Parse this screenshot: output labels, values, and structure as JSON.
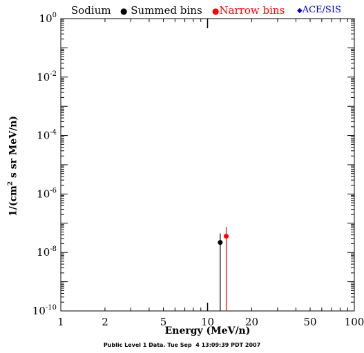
{
  "legend": {
    "species": "Sodium",
    "summed_label": "Summed bins",
    "narrow_label": "Narrow bins",
    "source_label": "ACE/SIS",
    "colors": {
      "summed": "#000000",
      "narrow": "#ff0000",
      "source": "#0000cc"
    }
  },
  "footer": "Public Level 1 Data. Tue Sep  4 13:09:39 PDT 2007",
  "chart_data": {
    "type": "scatter",
    "xlabel": "Energy (MeV/n)",
    "ylabel_prefix": "1/(cm",
    "ylabel_sup": "2",
    "ylabel_suffix": " s sr MeV/n)",
    "x_scale": "log",
    "y_scale": "log",
    "xlim": [
      1,
      100
    ],
    "ylim": [
      1e-10,
      1
    ],
    "x_ticks": [
      1,
      2,
      5,
      10,
      20,
      50,
      100
    ],
    "x_tick_labels": [
      "1",
      "2",
      "5",
      "10",
      "20",
      "50",
      "100"
    ],
    "y_ticks": [
      1,
      0.01,
      0.0001,
      1e-06,
      1e-08,
      1e-10
    ],
    "y_tick_labels": [
      {
        "base": "10",
        "exp": "0"
      },
      {
        "base": "10",
        "exp": "-2"
      },
      {
        "base": "10",
        "exp": "-4"
      },
      {
        "base": "10",
        "exp": "-6"
      },
      {
        "base": "10",
        "exp": "-8"
      },
      {
        "base": "10",
        "exp": "-10"
      }
    ],
    "grid": false,
    "series": [
      {
        "name": "Summed bins",
        "color": "#000000",
        "points": [
          {
            "x": 12.2,
            "y": 2.2e-08,
            "y_upper": 4.5e-08,
            "y_lower": 1e-10
          }
        ]
      },
      {
        "name": "Narrow bins",
        "color": "#ff0000",
        "points": [
          {
            "x": 13.4,
            "y": 3.6e-08,
            "y_upper": 7.5e-08,
            "y_lower": 1e-10
          }
        ]
      }
    ],
    "markers": [
      {
        "x": 10,
        "edge": "both"
      }
    ]
  }
}
